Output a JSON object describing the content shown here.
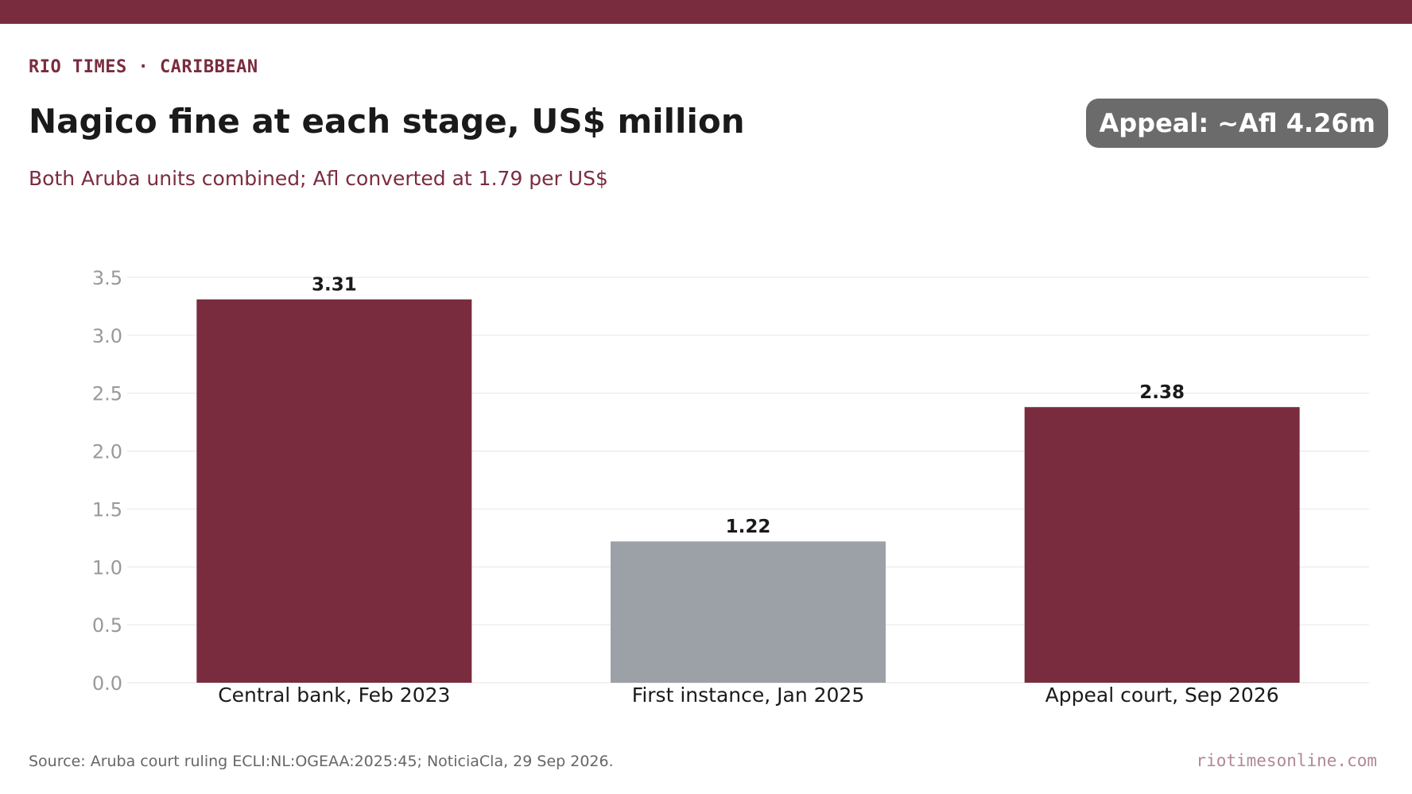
{
  "header": {
    "kicker": "RIO TIMES · CARIBBEAN",
    "title": "Nagico fine at each stage, US$ million",
    "subtitle": "Both Aruba units combined; Afl converted at 1.79 per US$",
    "badge": "Appeal: ~Afl 4.26m"
  },
  "footer": {
    "source": "Source: Aruba court ruling ECLI:NL:OGEAA:2025:45; NoticiaCla, 29 Sep 2026.",
    "site": "riotimesonline.com"
  },
  "colors": {
    "brand": "#7a2c3f",
    "neutral_bar": "#9ca0a7",
    "badge_bg": "#6b6b6b",
    "grid": "#e6e6e6",
    "tick_label": "#999999"
  },
  "chart_data": {
    "type": "bar",
    "title": "Nagico fine at each stage, US$ million",
    "subtitle": "Both Aruba units combined; Afl converted at 1.79 per US$",
    "xlabel": "",
    "ylabel": "",
    "categories": [
      "Central bank, Feb 2023",
      "First instance, Jan 2025",
      "Appeal court, Sep 2026"
    ],
    "values": [
      3.31,
      1.22,
      2.38
    ],
    "value_labels": [
      "3.31",
      "1.22",
      "2.38"
    ],
    "bar_colors": [
      "#7a2c3f",
      "#9ca0a7",
      "#7a2c3f"
    ],
    "ylim": [
      0,
      3.5
    ],
    "yticks": [
      0.0,
      0.5,
      1.0,
      1.5,
      2.0,
      2.5,
      3.0,
      3.5
    ],
    "ytick_labels": [
      "0.0",
      "0.5",
      "1.0",
      "1.5",
      "2.0",
      "2.5",
      "3.0",
      "3.5"
    ],
    "grid": true,
    "legend": "none"
  }
}
